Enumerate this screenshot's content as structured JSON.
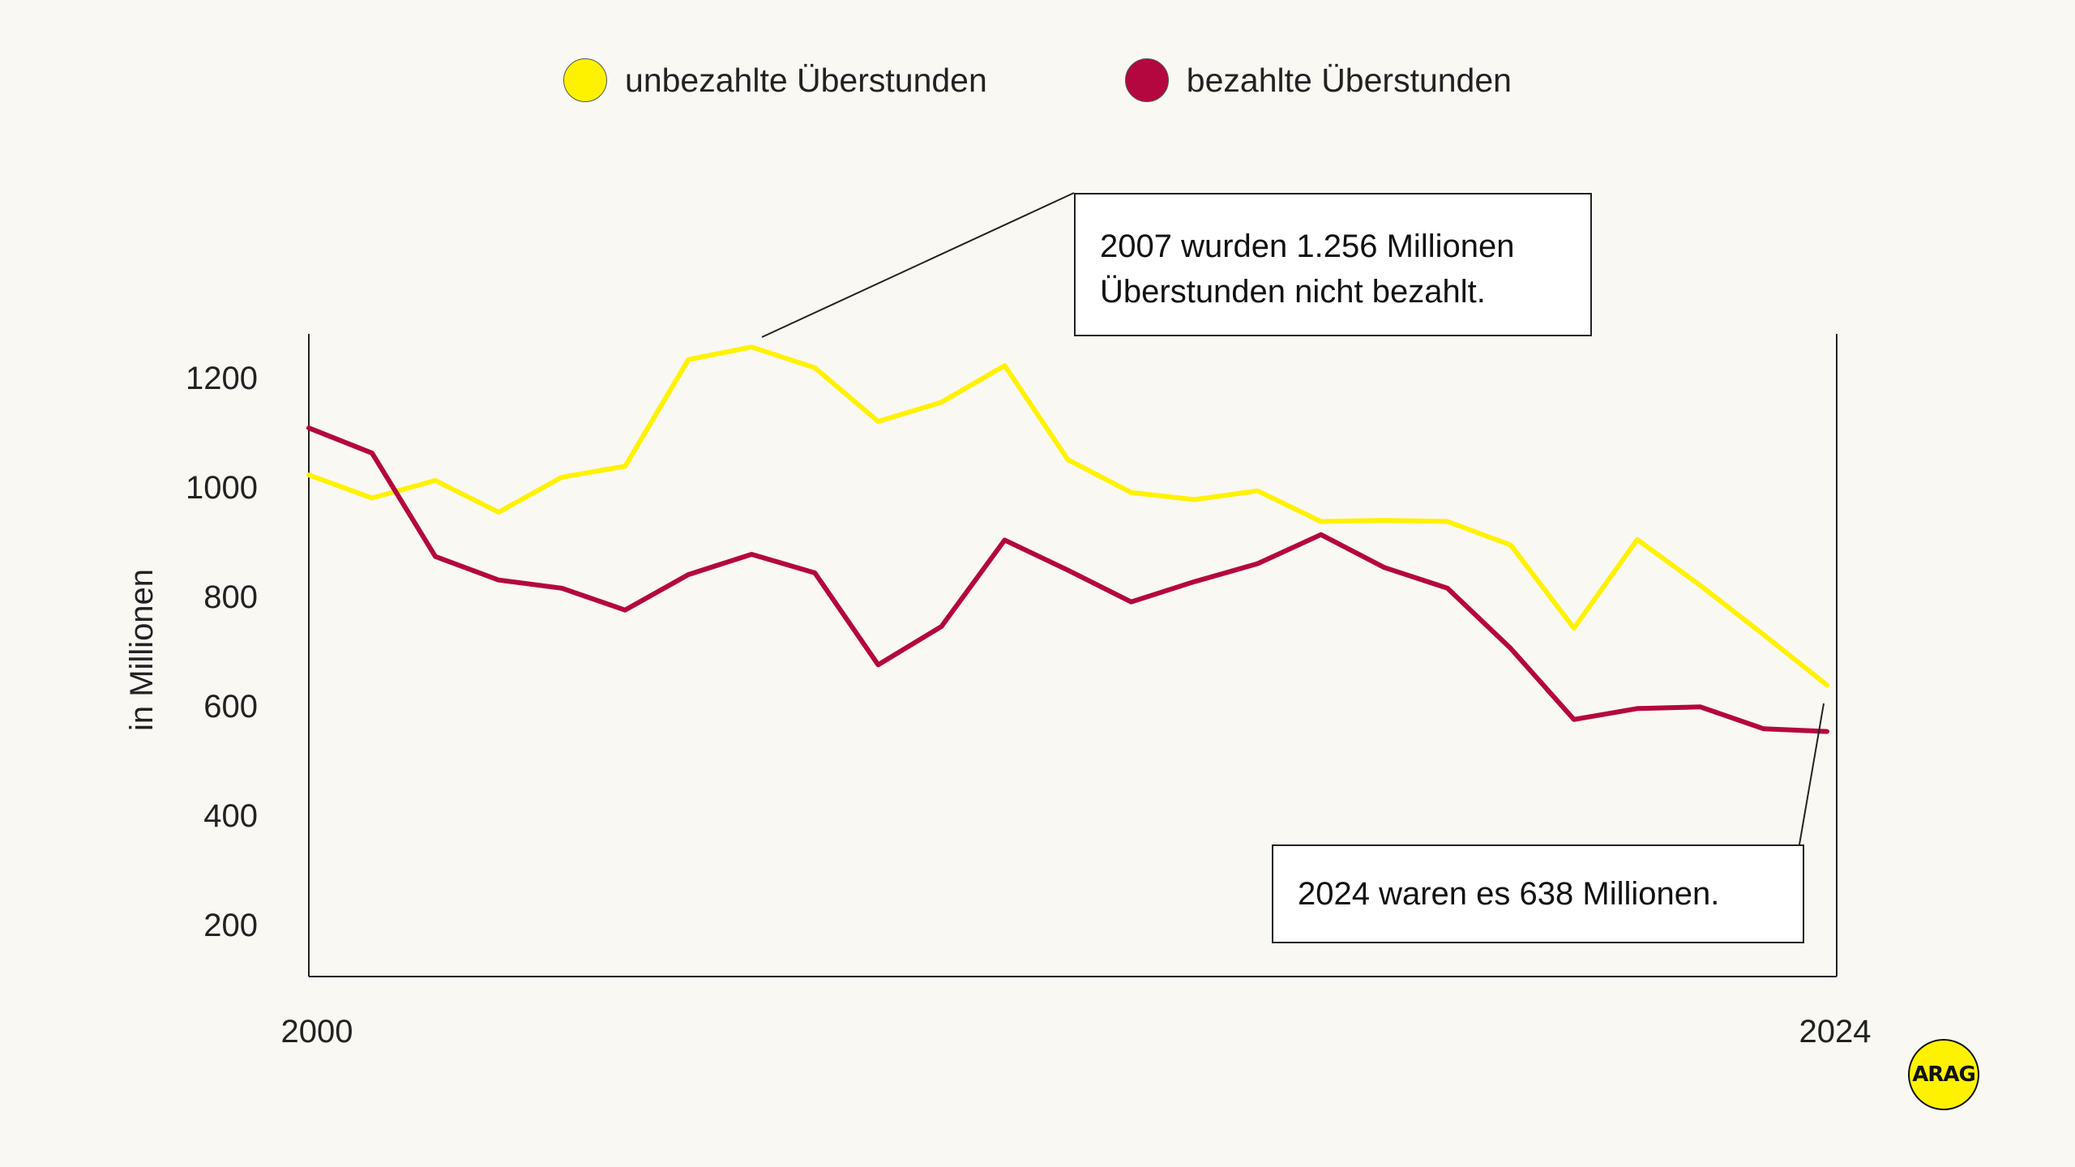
{
  "legend": [
    {
      "label": "unbezahlte Überstunden",
      "color": "#FFF200"
    },
    {
      "label": "bezahlte Überstunden",
      "color": "#B5073F"
    }
  ],
  "callouts": [
    {
      "lines": [
        "2007 wurden 1.256 Millionen",
        "Überstunden nicht bezahlt."
      ]
    },
    {
      "lines": [
        "2024 waren es 638 Millionen."
      ]
    }
  ],
  "logo": {
    "text": "ARAG"
  },
  "chart_data": {
    "type": "line",
    "title": "",
    "xlabel": "",
    "ylabel": "in Millionen",
    "x": [
      2000,
      2001,
      2002,
      2003,
      2004,
      2005,
      2006,
      2007,
      2008,
      2009,
      2010,
      2011,
      2012,
      2013,
      2014,
      2015,
      2016,
      2017,
      2018,
      2019,
      2020,
      2021,
      2022,
      2023,
      2024
    ],
    "x_tick_labels": [
      "2000",
      "2024"
    ],
    "y_ticks": [
      200,
      400,
      600,
      800,
      1000,
      1200
    ],
    "ylim": [
      105,
      1280
    ],
    "xlim": [
      2000,
      2024
    ],
    "grid": false,
    "legend_position": "top",
    "series": [
      {
        "name": "unbezahlte Überstunden",
        "color": "#FFF200",
        "values": [
          1022,
          980,
          1012,
          954,
          1018,
          1038,
          1233,
          1256,
          1218,
          1120,
          1155,
          1222,
          1050,
          990,
          977,
          993,
          937,
          939,
          937,
          894,
          742,
          904,
          820,
          730,
          638
        ]
      },
      {
        "name": "bezahlte Überstunden",
        "color": "#B5073F",
        "values": [
          1108,
          1062,
          873,
          830,
          815,
          775,
          840,
          877,
          843,
          675,
          745,
          903,
          848,
          790,
          827,
          860,
          913,
          853,
          815,
          705,
          575,
          595,
          598,
          558,
          553
        ]
      }
    ]
  }
}
